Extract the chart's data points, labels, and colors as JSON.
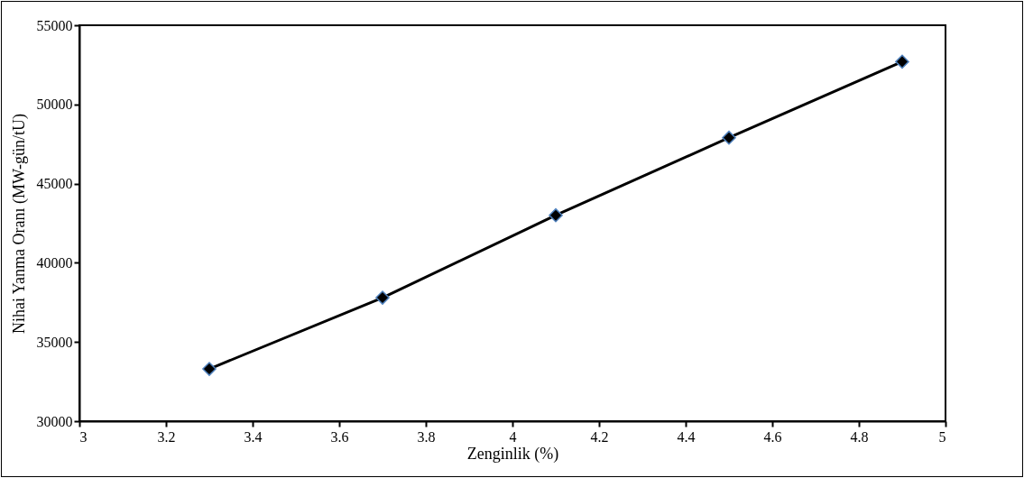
{
  "chart_data": {
    "type": "line",
    "xlabel": "Zenginlik (%)",
    "ylabel": "Nihai Yanma Oranı (MW-gün/tU)",
    "x": [
      3.3,
      3.7,
      4.1,
      4.5,
      4.9
    ],
    "series": [
      {
        "color": "#000000",
        "values": [
          33300,
          37800,
          43000,
          47900,
          52700
        ]
      }
    ],
    "xlim": [
      3,
      5
    ],
    "xticks": [
      3,
      3.2,
      3.4,
      3.6,
      3.8,
      4,
      4.2,
      4.4,
      4.6,
      4.8,
      5
    ],
    "ylim": [
      30000,
      55000
    ],
    "yticks": [
      30000,
      35000,
      40000,
      45000,
      50000,
      55000
    ],
    "grid": false,
    "marker": "diamond",
    "line_style": "solid"
  }
}
